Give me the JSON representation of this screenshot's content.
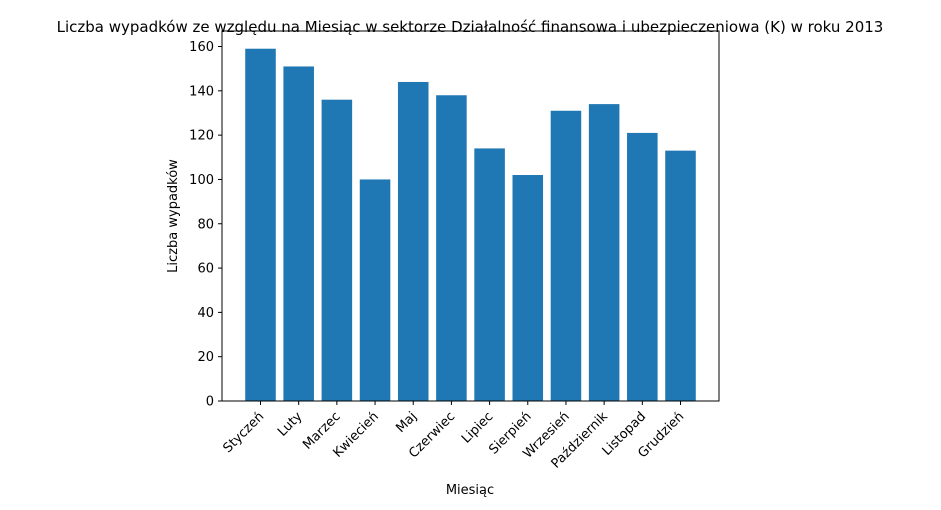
{
  "chart_data": {
    "type": "bar",
    "title": "Liczba wypadków ze względu na Miesiąc w sektorze Działalność finansowa i ubezpieczeniowa (K) w roku 2013",
    "xlabel": "Miesiąc",
    "ylabel": "Liczba wypadków",
    "categories": [
      "Styczeń",
      "Luty",
      "Marzec",
      "Kwiecień",
      "Maj",
      "Czerwiec",
      "Lipiec",
      "Sierpień",
      "Wrzesień",
      "Październik",
      "Listopad",
      "Grudzień"
    ],
    "values": [
      159,
      151,
      136,
      100,
      144,
      138,
      114,
      102,
      131,
      134,
      121,
      113
    ],
    "ylim": [
      0,
      167
    ],
    "yticks": [
      0,
      20,
      40,
      60,
      80,
      100,
      120,
      140,
      160
    ],
    "bar_color": "#1f77b4",
    "grid": false,
    "legend": "none"
  }
}
